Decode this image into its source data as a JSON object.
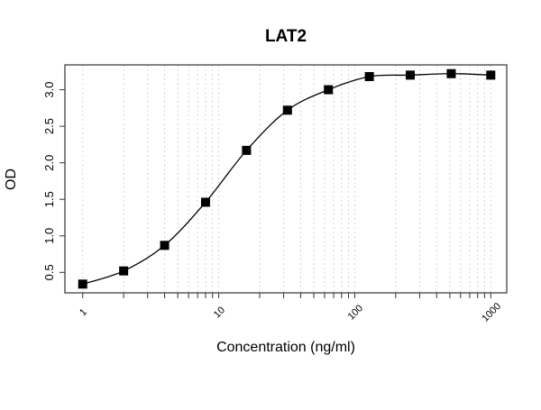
{
  "chart_data": {
    "type": "scatter",
    "title": "LAT2",
    "xlabel": "Concentration (ng/ml)",
    "ylabel": "OD",
    "x_scale": "log",
    "xlim": [
      0.74,
      1310
    ],
    "ylim": [
      0.22,
      3.34
    ],
    "x_ticks": [
      1,
      10,
      100,
      1000
    ],
    "x_tick_labels": [
      "1",
      "10",
      "100",
      "1000"
    ],
    "y_ticks": [
      0.5,
      1.0,
      1.5,
      2.0,
      2.5,
      3.0
    ],
    "y_tick_labels": [
      "0.5",
      "1.0",
      "1.5",
      "2.0",
      "2.5",
      "3.0"
    ],
    "grid": "vertical dotted at log minor ticks",
    "marker": "square",
    "fitted_curve": true,
    "x": [
      1,
      2,
      4,
      8,
      16,
      32,
      64,
      128,
      256,
      512,
      1000
    ],
    "y": [
      0.34,
      0.52,
      0.87,
      1.46,
      2.17,
      2.72,
      3.0,
      3.18,
      3.2,
      3.22,
      3.2
    ],
    "colors": {
      "points": "#000000",
      "curve": "#000000",
      "grid": "#d3d3d3"
    }
  }
}
